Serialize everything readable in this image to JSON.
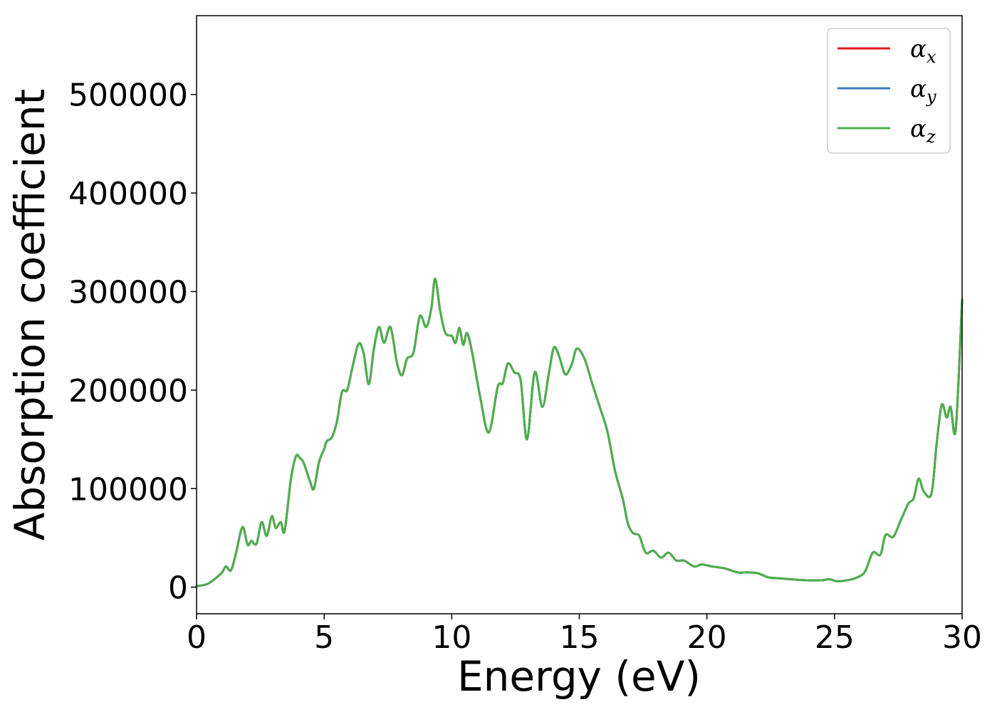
{
  "chart_data": {
    "type": "line",
    "title": "",
    "xlabel": "Energy (eV)",
    "ylabel": "Absorption coefficient",
    "xlim": [
      0,
      30
    ],
    "ylim": [
      -27000,
      580000
    ],
    "xticks": [
      0,
      5,
      10,
      15,
      20,
      25,
      30
    ],
    "yticks": [
      0,
      100000,
      200000,
      300000,
      400000,
      500000
    ],
    "grid": false,
    "legend_position": "top-right",
    "series": [
      {
        "name": "α",
        "sub": "x",
        "color": "#e41a1c"
      },
      {
        "name": "α",
        "sub": "y",
        "color": "#377eb8"
      },
      {
        "name": "α",
        "sub": "z",
        "color": "#4daf4a"
      }
    ],
    "x": [
      0,
      0.4,
      0.7,
      1.0,
      1.15,
      1.35,
      1.55,
      1.8,
      2.0,
      2.15,
      2.35,
      2.55,
      2.75,
      2.95,
      3.1,
      3.3,
      3.45,
      3.7,
      3.9,
      4.05,
      4.2,
      4.45,
      4.6,
      4.8,
      5.0,
      5.1,
      5.3,
      5.5,
      5.7,
      5.9,
      6.1,
      6.35,
      6.55,
      6.75,
      6.95,
      7.15,
      7.35,
      7.6,
      7.85,
      8.05,
      8.25,
      8.5,
      8.75,
      9.0,
      9.2,
      9.35,
      9.55,
      9.75,
      10.0,
      10.15,
      10.3,
      10.45,
      10.6,
      10.8,
      11.1,
      11.45,
      11.8,
      12.0,
      12.2,
      12.45,
      12.7,
      12.95,
      13.25,
      13.55,
      13.8,
      14.0,
      14.2,
      14.45,
      14.7,
      14.9,
      15.2,
      15.5,
      15.8,
      16.1,
      16.4,
      16.7,
      16.9,
      17.1,
      17.35,
      17.6,
      17.9,
      18.2,
      18.5,
      18.8,
      19.1,
      19.5,
      19.8,
      20.2,
      20.7,
      21.2,
      21.6,
      22.0,
      22.4,
      22.8,
      23.3,
      23.9,
      24.5,
      24.8,
      25.1,
      25.5,
      25.9,
      26.2,
      26.5,
      26.8,
      27.0,
      27.3,
      27.6,
      27.9,
      28.1,
      28.3,
      28.5,
      28.8,
      29.0,
      29.2,
      29.4,
      29.55,
      29.75,
      30.0
    ],
    "values": [
      1000,
      3000,
      8000,
      15000,
      21000,
      17000,
      35000,
      61000,
      43000,
      47000,
      44000,
      66000,
      52000,
      72000,
      60000,
      66000,
      57000,
      110000,
      133000,
      131000,
      126000,
      107000,
      100000,
      127000,
      140000,
      148000,
      152000,
      168000,
      198000,
      200000,
      222000,
      247000,
      237000,
      206000,
      242000,
      264000,
      248000,
      264000,
      228000,
      215000,
      232000,
      238000,
      275000,
      264000,
      283000,
      313000,
      280000,
      258000,
      255000,
      248000,
      263000,
      246000,
      258000,
      238000,
      195000,
      157000,
      203000,
      207000,
      227000,
      218000,
      210000,
      150000,
      218000,
      183000,
      216000,
      243000,
      235000,
      216000,
      226000,
      242000,
      232000,
      207000,
      183000,
      158000,
      118000,
      90000,
      65000,
      55000,
      52000,
      35000,
      37000,
      30000,
      35000,
      27000,
      27000,
      21000,
      23000,
      21000,
      19000,
      15000,
      15000,
      14000,
      10000,
      9000,
      8000,
      7000,
      7000,
      8000,
      6000,
      7000,
      10000,
      16000,
      35000,
      33000,
      53000,
      51000,
      68000,
      85000,
      90000,
      110000,
      97000,
      95000,
      145000,
      185000,
      172000,
      183000,
      160000,
      292000
    ]
  }
}
